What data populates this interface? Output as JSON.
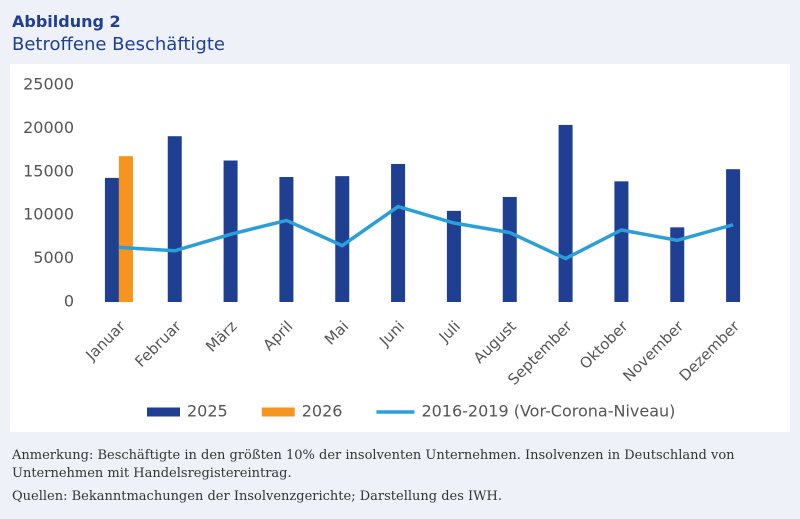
{
  "chart_data": {
    "type": "bar",
    "figure_label": "Abbildung 2",
    "title": "Betroffene Beschäftigte",
    "categories": [
      "Januar",
      "Februar",
      "März",
      "April",
      "Mai",
      "Juni",
      "Juli",
      "August",
      "September",
      "Oktober",
      "November",
      "Dezember"
    ],
    "series": [
      {
        "name": "2025",
        "type": "bar",
        "color": "#1f3f93",
        "values": [
          14300,
          19100,
          16300,
          14400,
          14500,
          15900,
          10500,
          12100,
          20400,
          13900,
          8600,
          15300
        ]
      },
      {
        "name": "2026",
        "type": "bar",
        "color": "#f7941d",
        "values": [
          16800,
          null,
          null,
          null,
          null,
          null,
          null,
          null,
          null,
          null,
          null,
          null
        ]
      },
      {
        "name": "2016-2019 (Vor-Corona-Niveau)",
        "type": "line",
        "color": "#2a9fd8",
        "values": [
          6300,
          5900,
          7800,
          9400,
          6500,
          11000,
          9100,
          8000,
          5000,
          8300,
          7100,
          8900
        ]
      }
    ],
    "ylim": [
      0,
      25000
    ],
    "yticks": [
      0,
      5000,
      10000,
      15000,
      20000,
      25000
    ],
    "grid": false,
    "legend": "bottom",
    "notes": [
      "Anmerkung: Beschäftigte in den größten 10% der insolventen Unternehmen. Insolvenzen in Deutschland von Unternehmen mit Handelsregistereintrag.",
      "Quellen: Bekanntmachungen der Insolvenzgerichte; Darstellung des IWH."
    ]
  }
}
